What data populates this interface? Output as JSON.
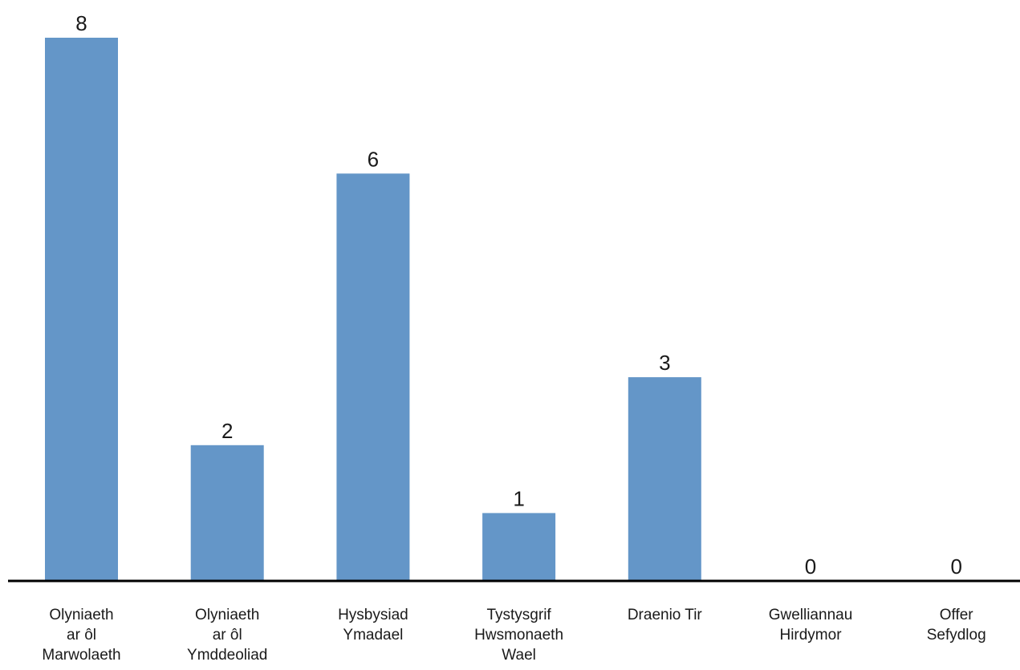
{
  "chart_data": {
    "type": "bar",
    "categories": [
      [
        "Olyniaeth",
        "ar ôl",
        "Marwolaeth"
      ],
      [
        "Olyniaeth",
        "ar ôl",
        "Ymddeoliad"
      ],
      [
        "Hysbysiad",
        "Ymadael"
      ],
      [
        "Tystysgrif",
        "Hwsmonaeth",
        "Wael"
      ],
      [
        "Draenio Tir"
      ],
      [
        "Gwelliannau",
        "Hirdymor"
      ],
      [
        "Offer",
        "Sefydlog"
      ]
    ],
    "values": [
      8,
      2,
      6,
      1,
      3,
      0,
      0
    ],
    "ylim": [
      0,
      8
    ],
    "grid": false,
    "legend": "none",
    "bar_color": "#6496c8",
    "axis_color": "#000000"
  }
}
